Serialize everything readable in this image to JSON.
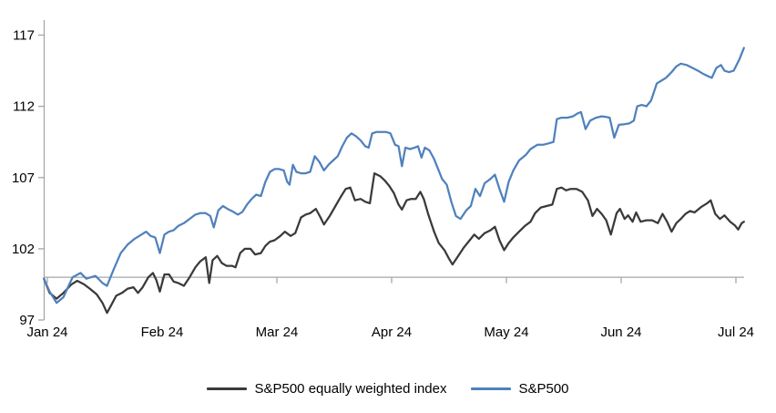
{
  "chart_data": {
    "type": "line",
    "title": "",
    "x_axis": {
      "tick_labels": [
        "Jan 24",
        "Feb 24",
        "Mar 24",
        "Apr 24",
        "May 24",
        "Jun 24",
        "Jul 24"
      ],
      "unit": "months since Jan 2024",
      "range": [
        -0.05,
        6.1
      ]
    },
    "y_axis": {
      "ticks": [
        97,
        102,
        107,
        112,
        117
      ],
      "range": [
        97,
        118
      ],
      "baseline_value": 100
    },
    "grid": "off",
    "legend_position": "bottom-center",
    "axis_color": "#a6a6a6",
    "text_color": "#000000",
    "series": [
      {
        "id": "sp500-equal-weight",
        "name": "S&P500 equally weighted index",
        "color": "#3a3a3a",
        "points": [
          [
            -0.03,
            99.9
          ],
          [
            0.02,
            98.9
          ],
          [
            0.08,
            98.5
          ],
          [
            0.14,
            98.9
          ],
          [
            0.21,
            99.5
          ],
          [
            0.26,
            99.75
          ],
          [
            0.32,
            99.5
          ],
          [
            0.37,
            99.2
          ],
          [
            0.43,
            98.8
          ],
          [
            0.48,
            98.2
          ],
          [
            0.52,
            97.5
          ],
          [
            0.56,
            98.1
          ],
          [
            0.6,
            98.7
          ],
          [
            0.65,
            98.9
          ],
          [
            0.7,
            99.2
          ],
          [
            0.75,
            99.3
          ],
          [
            0.79,
            98.9
          ],
          [
            0.83,
            99.3
          ],
          [
            0.88,
            100.0
          ],
          [
            0.92,
            100.3
          ],
          [
            0.95,
            99.8
          ],
          [
            0.98,
            99.0
          ],
          [
            1.02,
            100.2
          ],
          [
            1.06,
            100.2
          ],
          [
            1.1,
            99.7
          ],
          [
            1.14,
            99.6
          ],
          [
            1.19,
            99.4
          ],
          [
            1.24,
            100.0
          ],
          [
            1.29,
            100.7
          ],
          [
            1.33,
            101.1
          ],
          [
            1.38,
            101.4
          ],
          [
            1.41,
            99.6
          ],
          [
            1.44,
            101.2
          ],
          [
            1.48,
            101.5
          ],
          [
            1.52,
            101.0
          ],
          [
            1.56,
            100.8
          ],
          [
            1.61,
            100.8
          ],
          [
            1.64,
            100.7
          ],
          [
            1.68,
            101.7
          ],
          [
            1.72,
            102.0
          ],
          [
            1.77,
            102.0
          ],
          [
            1.81,
            101.6
          ],
          [
            1.86,
            101.7
          ],
          [
            1.9,
            102.2
          ],
          [
            1.94,
            102.5
          ],
          [
            1.98,
            102.6
          ],
          [
            2.03,
            102.9
          ],
          [
            2.07,
            103.2
          ],
          [
            2.12,
            102.9
          ],
          [
            2.16,
            103.1
          ],
          [
            2.21,
            104.2
          ],
          [
            2.25,
            104.4
          ],
          [
            2.29,
            104.5
          ],
          [
            2.34,
            104.8
          ],
          [
            2.38,
            104.2
          ],
          [
            2.41,
            103.7
          ],
          [
            2.46,
            104.3
          ],
          [
            2.51,
            105.0
          ],
          [
            2.56,
            105.7
          ],
          [
            2.6,
            106.2
          ],
          [
            2.64,
            106.3
          ],
          [
            2.68,
            105.4
          ],
          [
            2.73,
            105.5
          ],
          [
            2.77,
            105.3
          ],
          [
            2.81,
            105.2
          ],
          [
            2.85,
            107.3
          ],
          [
            2.9,
            107.1
          ],
          [
            2.94,
            106.8
          ],
          [
            2.98,
            106.4
          ],
          [
            3.02,
            105.9
          ],
          [
            3.06,
            105.1
          ],
          [
            3.09,
            104.75
          ],
          [
            3.13,
            105.4
          ],
          [
            3.17,
            105.5
          ],
          [
            3.21,
            105.5
          ],
          [
            3.25,
            106.0
          ],
          [
            3.28,
            105.5
          ],
          [
            3.32,
            104.4
          ],
          [
            3.37,
            103.2
          ],
          [
            3.41,
            102.4
          ],
          [
            3.46,
            101.9
          ],
          [
            3.5,
            101.3
          ],
          [
            3.53,
            100.9
          ],
          [
            3.58,
            101.5
          ],
          [
            3.63,
            102.1
          ],
          [
            3.68,
            102.6
          ],
          [
            3.72,
            103.0
          ],
          [
            3.76,
            102.7
          ],
          [
            3.81,
            103.1
          ],
          [
            3.86,
            103.3
          ],
          [
            3.9,
            103.55
          ],
          [
            3.94,
            102.6
          ],
          [
            3.98,
            101.9
          ],
          [
            4.02,
            102.4
          ],
          [
            4.06,
            102.8
          ],
          [
            4.11,
            103.2
          ],
          [
            4.16,
            103.6
          ],
          [
            4.21,
            103.9
          ],
          [
            4.25,
            104.5
          ],
          [
            4.3,
            104.9
          ],
          [
            4.35,
            105.0
          ],
          [
            4.4,
            105.1
          ],
          [
            4.44,
            106.2
          ],
          [
            4.48,
            106.3
          ],
          [
            4.52,
            106.1
          ],
          [
            4.56,
            106.2
          ],
          [
            4.61,
            106.2
          ],
          [
            4.66,
            106.0
          ],
          [
            4.71,
            105.4
          ],
          [
            4.75,
            104.3
          ],
          [
            4.79,
            104.8
          ],
          [
            4.83,
            104.45
          ],
          [
            4.87,
            104.0
          ],
          [
            4.91,
            103.0
          ],
          [
            4.96,
            104.5
          ],
          [
            4.99,
            104.8
          ],
          [
            5.03,
            104.1
          ],
          [
            5.06,
            104.35
          ],
          [
            5.1,
            103.9
          ],
          [
            5.13,
            104.55
          ],
          [
            5.17,
            103.9
          ],
          [
            5.22,
            104.0
          ],
          [
            5.27,
            104.0
          ],
          [
            5.32,
            103.8
          ],
          [
            5.36,
            104.45
          ],
          [
            5.4,
            103.9
          ],
          [
            5.44,
            103.2
          ],
          [
            5.48,
            103.8
          ],
          [
            5.52,
            104.1
          ],
          [
            5.56,
            104.45
          ],
          [
            5.6,
            104.65
          ],
          [
            5.64,
            104.55
          ],
          [
            5.7,
            104.95
          ],
          [
            5.75,
            105.2
          ],
          [
            5.78,
            105.4
          ],
          [
            5.82,
            104.45
          ],
          [
            5.86,
            104.1
          ],
          [
            5.9,
            104.35
          ],
          [
            5.95,
            103.9
          ],
          [
            5.99,
            103.65
          ],
          [
            6.02,
            103.35
          ],
          [
            6.05,
            103.8
          ],
          [
            6.07,
            103.9
          ]
        ]
      },
      {
        "id": "sp500",
        "name": "S&P500",
        "color": "#4f81bd",
        "points": [
          [
            -0.03,
            99.9
          ],
          [
            0.02,
            99.0
          ],
          [
            0.08,
            98.2
          ],
          [
            0.14,
            98.6
          ],
          [
            0.22,
            100.0
          ],
          [
            0.29,
            100.3
          ],
          [
            0.34,
            99.9
          ],
          [
            0.42,
            100.1
          ],
          [
            0.48,
            99.6
          ],
          [
            0.52,
            99.4
          ],
          [
            0.58,
            100.6
          ],
          [
            0.64,
            101.7
          ],
          [
            0.7,
            102.3
          ],
          [
            0.76,
            102.7
          ],
          [
            0.82,
            103.0
          ],
          [
            0.86,
            103.2
          ],
          [
            0.9,
            102.9
          ],
          [
            0.94,
            102.8
          ],
          [
            0.98,
            101.7
          ],
          [
            1.02,
            103.0
          ],
          [
            1.06,
            103.2
          ],
          [
            1.1,
            103.3
          ],
          [
            1.14,
            103.6
          ],
          [
            1.19,
            103.8
          ],
          [
            1.24,
            104.1
          ],
          [
            1.29,
            104.4
          ],
          [
            1.33,
            104.5
          ],
          [
            1.38,
            104.5
          ],
          [
            1.42,
            104.3
          ],
          [
            1.45,
            103.5
          ],
          [
            1.49,
            104.7
          ],
          [
            1.53,
            105.0
          ],
          [
            1.57,
            104.8
          ],
          [
            1.62,
            104.6
          ],
          [
            1.66,
            104.4
          ],
          [
            1.7,
            104.6
          ],
          [
            1.74,
            105.1
          ],
          [
            1.78,
            105.5
          ],
          [
            1.82,
            105.8
          ],
          [
            1.86,
            105.7
          ],
          [
            1.9,
            106.7
          ],
          [
            1.94,
            107.4
          ],
          [
            1.98,
            107.6
          ],
          [
            2.02,
            107.6
          ],
          [
            2.06,
            107.5
          ],
          [
            2.09,
            106.7
          ],
          [
            2.11,
            106.5
          ],
          [
            2.14,
            107.9
          ],
          [
            2.17,
            107.4
          ],
          [
            2.21,
            107.3
          ],
          [
            2.25,
            107.3
          ],
          [
            2.29,
            107.4
          ],
          [
            2.33,
            108.5
          ],
          [
            2.37,
            108.1
          ],
          [
            2.41,
            107.5
          ],
          [
            2.45,
            107.9
          ],
          [
            2.49,
            108.2
          ],
          [
            2.53,
            108.5
          ],
          [
            2.57,
            109.2
          ],
          [
            2.61,
            109.8
          ],
          [
            2.65,
            110.1
          ],
          [
            2.69,
            109.9
          ],
          [
            2.73,
            109.6
          ],
          [
            2.77,
            109.2
          ],
          [
            2.8,
            109.1
          ],
          [
            2.83,
            110.1
          ],
          [
            2.87,
            110.2
          ],
          [
            2.91,
            110.2
          ],
          [
            2.95,
            110.2
          ],
          [
            2.99,
            110.1
          ],
          [
            3.03,
            109.3
          ],
          [
            3.06,
            109.2
          ],
          [
            3.09,
            107.8
          ],
          [
            3.12,
            109.1
          ],
          [
            3.16,
            109.0
          ],
          [
            3.2,
            109.1
          ],
          [
            3.23,
            109.2
          ],
          [
            3.26,
            108.4
          ],
          [
            3.29,
            109.1
          ],
          [
            3.33,
            108.9
          ],
          [
            3.37,
            108.3
          ],
          [
            3.4,
            107.7
          ],
          [
            3.44,
            106.9
          ],
          [
            3.48,
            106.5
          ],
          [
            3.52,
            105.3
          ],
          [
            3.56,
            104.3
          ],
          [
            3.6,
            104.1
          ],
          [
            3.65,
            104.7
          ],
          [
            3.69,
            105.0
          ],
          [
            3.73,
            106.2
          ],
          [
            3.77,
            105.7
          ],
          [
            3.81,
            106.6
          ],
          [
            3.86,
            106.9
          ],
          [
            3.9,
            107.2
          ],
          [
            3.94,
            106.2
          ],
          [
            3.98,
            105.3
          ],
          [
            4.02,
            106.7
          ],
          [
            4.06,
            107.5
          ],
          [
            4.11,
            108.2
          ],
          [
            4.17,
            108.6
          ],
          [
            4.21,
            109.0
          ],
          [
            4.27,
            109.3
          ],
          [
            4.32,
            109.3
          ],
          [
            4.37,
            109.4
          ],
          [
            4.41,
            109.5
          ],
          [
            4.44,
            111.1
          ],
          [
            4.48,
            111.2
          ],
          [
            4.53,
            111.2
          ],
          [
            4.58,
            111.3
          ],
          [
            4.62,
            111.5
          ],
          [
            4.65,
            111.6
          ],
          [
            4.69,
            110.4
          ],
          [
            4.73,
            111.0
          ],
          [
            4.78,
            111.2
          ],
          [
            4.83,
            111.3
          ],
          [
            4.87,
            111.25
          ],
          [
            4.9,
            111.2
          ],
          [
            4.94,
            109.8
          ],
          [
            4.98,
            110.7
          ],
          [
            5.03,
            110.75
          ],
          [
            5.07,
            110.8
          ],
          [
            5.11,
            111.0
          ],
          [
            5.14,
            112.0
          ],
          [
            5.18,
            112.1
          ],
          [
            5.22,
            112.0
          ],
          [
            5.26,
            112.4
          ],
          [
            5.31,
            113.6
          ],
          [
            5.35,
            113.8
          ],
          [
            5.39,
            114.0
          ],
          [
            5.44,
            114.4
          ],
          [
            5.48,
            114.8
          ],
          [
            5.52,
            115.0
          ],
          [
            5.57,
            114.9
          ],
          [
            5.62,
            114.7
          ],
          [
            5.67,
            114.5
          ],
          [
            5.71,
            114.3
          ],
          [
            5.76,
            114.1
          ],
          [
            5.79,
            114.0
          ],
          [
            5.83,
            114.7
          ],
          [
            5.87,
            114.9
          ],
          [
            5.9,
            114.5
          ],
          [
            5.94,
            114.4
          ],
          [
            5.98,
            114.5
          ],
          [
            6.03,
            115.3
          ],
          [
            6.07,
            116.1
          ]
        ]
      }
    ]
  }
}
